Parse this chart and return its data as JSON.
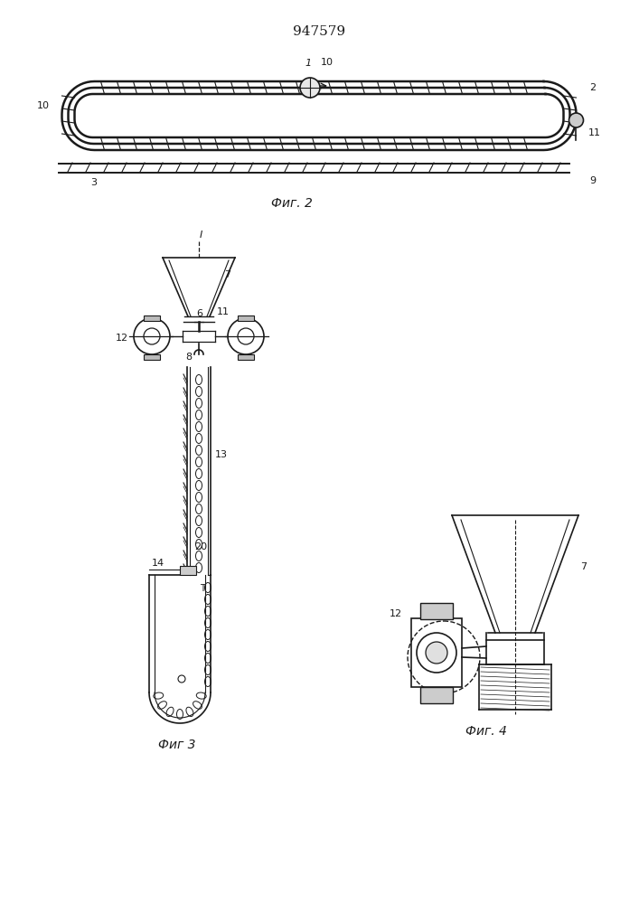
{
  "title": "947579",
  "fig2_label": "Фиг. 2",
  "fig3_label": "Фиг 3",
  "fig4_label": "Фиг. 4",
  "bg_color": "#ffffff",
  "line_color": "#1a1a1a"
}
